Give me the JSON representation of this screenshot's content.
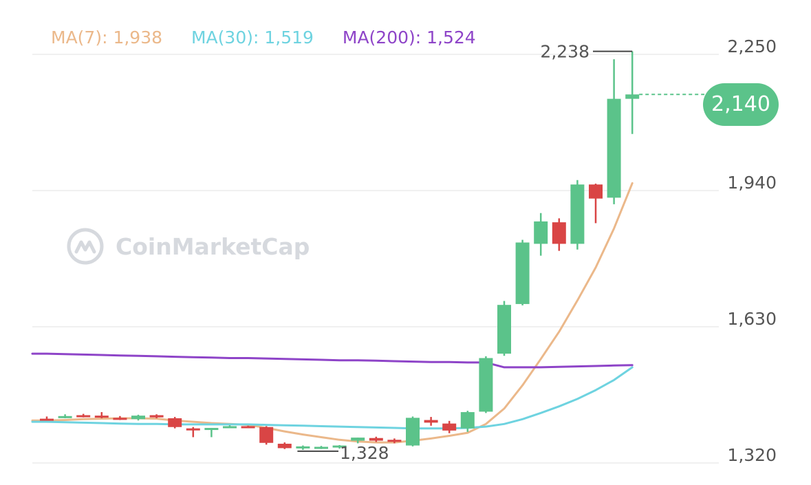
{
  "legend": [
    {
      "label": "MA(7): 1,938",
      "color": "#EBB88A"
    },
    {
      "label": "MA(30): 1,519",
      "color": "#6ED3E0"
    },
    {
      "label": "MA(200): 1,524",
      "color": "#8E44C8"
    }
  ],
  "watermark": {
    "text": "CoinMarketCap",
    "icon": "coinmarketcap-logo"
  },
  "colors": {
    "up": "#5BC38A",
    "down": "#D94545",
    "current_price": "#5BC38A",
    "grid": "#ececec",
    "axis_text": "#555555"
  },
  "chart_data": {
    "type": "candlestick",
    "y_ticks": [
      "2,250",
      "1,940",
      "1,630",
      "1,320"
    ],
    "y_tick_values": [
      2250,
      1940,
      1630,
      1320
    ],
    "ylim": [
      1306,
      2272
    ],
    "current_price": {
      "label": "2,140",
      "value": 2140
    },
    "high_marker": {
      "label": "2,238",
      "value": 2238
    },
    "low_marker": {
      "label": "1,328",
      "value": 1328
    },
    "candles": [
      {
        "o": 1402,
        "h": 1407,
        "l": 1398,
        "c": 1400
      },
      {
        "o": 1407,
        "h": 1412,
        "l": 1403,
        "c": 1408
      },
      {
        "o": 1410,
        "h": 1413,
        "l": 1405,
        "c": 1407
      },
      {
        "o": 1409,
        "h": 1417,
        "l": 1403,
        "c": 1406
      },
      {
        "o": 1404,
        "h": 1408,
        "l": 1399,
        "c": 1402
      },
      {
        "o": 1401,
        "h": 1411,
        "l": 1398,
        "c": 1409
      },
      {
        "o": 1410,
        "h": 1412,
        "l": 1403,
        "c": 1405
      },
      {
        "o": 1403,
        "h": 1406,
        "l": 1380,
        "c": 1383
      },
      {
        "o": 1380,
        "h": 1383,
        "l": 1360,
        "c": 1377
      },
      {
        "o": 1378,
        "h": 1381,
        "l": 1360,
        "c": 1381
      },
      {
        "o": 1385,
        "h": 1387,
        "l": 1383,
        "c": 1385
      },
      {
        "o": 1385,
        "h": 1386,
        "l": 1383,
        "c": 1384
      },
      {
        "o": 1383,
        "h": 1385,
        "l": 1343,
        "c": 1347
      },
      {
        "o": 1345,
        "h": 1348,
        "l": 1333,
        "c": 1335
      },
      {
        "o": 1335,
        "h": 1341,
        "l": 1331,
        "c": 1339
      },
      {
        "o": 1336,
        "h": 1340,
        "l": 1333,
        "c": 1338
      },
      {
        "o": 1337,
        "h": 1342,
        "l": 1334,
        "c": 1341
      },
      {
        "o": 1352,
        "h": 1359,
        "l": 1346,
        "c": 1359
      },
      {
        "o": 1358,
        "h": 1361,
        "l": 1349,
        "c": 1352
      },
      {
        "o": 1354,
        "h": 1357,
        "l": 1346,
        "c": 1350
      },
      {
        "o": 1341,
        "h": 1407,
        "l": 1339,
        "c": 1404
      },
      {
        "o": 1399,
        "h": 1406,
        "l": 1386,
        "c": 1393
      },
      {
        "o": 1391,
        "h": 1397,
        "l": 1369,
        "c": 1375
      },
      {
        "o": 1380,
        "h": 1420,
        "l": 1372,
        "c": 1417
      },
      {
        "o": 1418,
        "h": 1544,
        "l": 1415,
        "c": 1540
      },
      {
        "o": 1550,
        "h": 1670,
        "l": 1545,
        "c": 1661
      },
      {
        "o": 1663,
        "h": 1809,
        "l": 1660,
        "c": 1803
      },
      {
        "o": 1800,
        "h": 1870,
        "l": 1773,
        "c": 1851
      },
      {
        "o": 1849,
        "h": 1858,
        "l": 1784,
        "c": 1800
      },
      {
        "o": 1800,
        "h": 1945,
        "l": 1787,
        "c": 1935
      },
      {
        "o": 1935,
        "h": 1937,
        "l": 1847,
        "c": 1903
      },
      {
        "o": 1905,
        "h": 2220,
        "l": 1890,
        "c": 2130
      },
      {
        "o": 2130,
        "h": 2238,
        "l": 2050,
        "c": 2140
      }
    ],
    "ma_series": [
      {
        "label": "MA(7)",
        "color": "#EBB88A",
        "values": [
          1398,
          1399,
          1401,
          1402,
          1403,
          1403,
          1402,
          1398,
          1395,
          1392,
          1390,
          1388,
          1381,
          1373,
          1366,
          1360,
          1354,
          1350,
          1348,
          1348,
          1352,
          1357,
          1363,
          1370,
          1390,
          1425,
          1478,
          1538,
          1600,
          1671,
          1746,
          1835,
          1938
        ]
      },
      {
        "label": "MA(30)",
        "color": "#6ED3E0",
        "values": [
          1395,
          1394,
          1393,
          1392,
          1391,
          1390,
          1390,
          1389,
          1389,
          1389,
          1389,
          1389,
          1388,
          1387,
          1386,
          1385,
          1384,
          1383,
          1382,
          1381,
          1380,
          1380,
          1380,
          1381,
          1384,
          1390,
          1401,
          1415,
          1430,
          1447,
          1467,
          1490,
          1519
        ]
      },
      {
        "label": "MA(200)",
        "color": "#8E44C8",
        "values": [
          1550,
          1549,
          1548,
          1547,
          1546,
          1545,
          1544,
          1543,
          1542,
          1541,
          1540,
          1540,
          1539,
          1538,
          1537,
          1536,
          1535,
          1535,
          1534,
          1533,
          1532,
          1531,
          1531,
          1530,
          1530,
          1519,
          1519,
          1519,
          1520,
          1521,
          1522,
          1523,
          1524
        ]
      }
    ]
  }
}
